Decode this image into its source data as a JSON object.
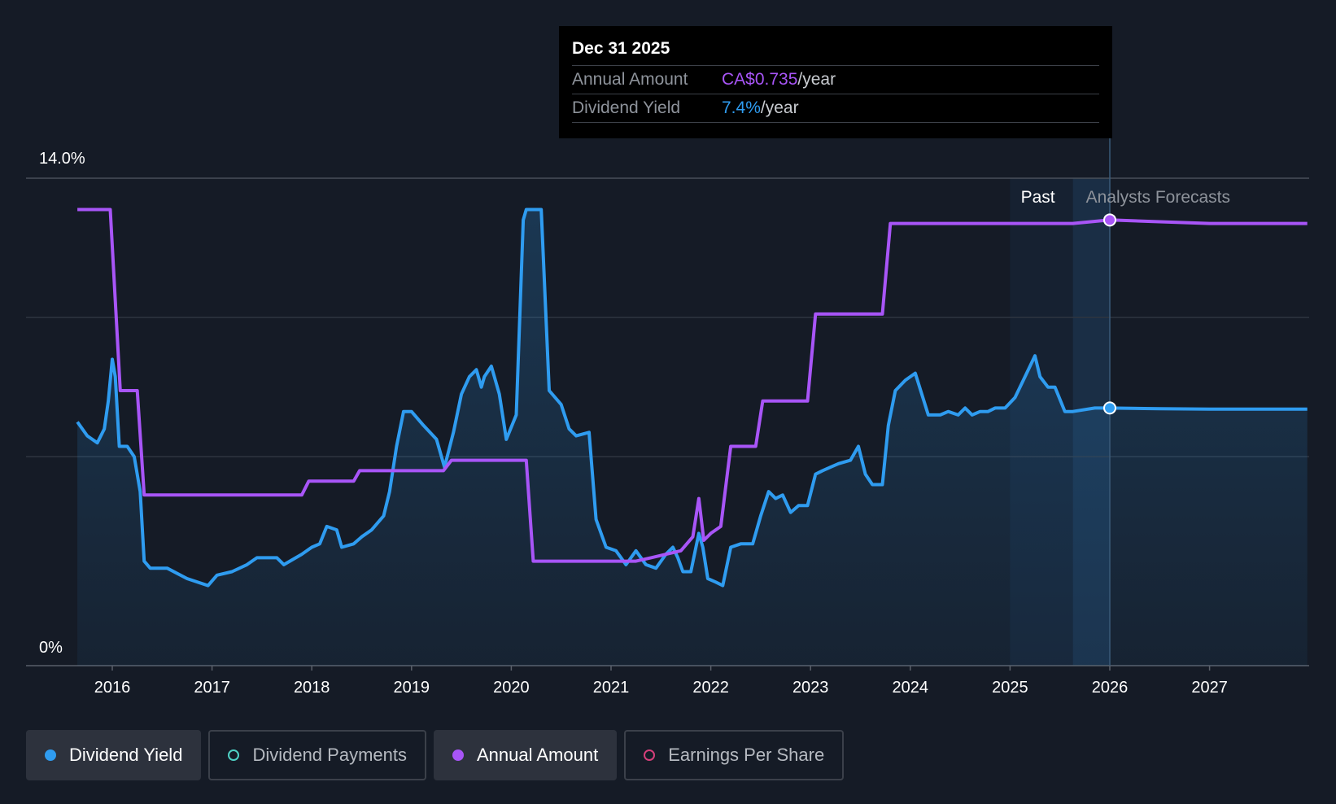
{
  "tooltip": {
    "date": "Dec 31 2025",
    "annual_label": "Annual Amount",
    "annual_value": "CA$0.735",
    "annual_unit": "/year",
    "yield_label": "Dividend Yield",
    "yield_value": "7.4%",
    "yield_unit": "/year"
  },
  "legend": {
    "dividend_yield": "Dividend Yield",
    "dividend_payments": "Dividend Payments",
    "annual_amount": "Annual Amount",
    "earnings_per_share": "Earnings Per Share"
  },
  "colors": {
    "background": "#151b26",
    "yield": "#2f9cf0",
    "annual": "#a855f7",
    "payments": "#4fd1c5",
    "eps": "#d63f7a",
    "grid": "#3a404b"
  },
  "chart_data": {
    "type": "line",
    "y_top_label": "14.0%",
    "y_bottom_label": "0%",
    "ylim": [
      0,
      14
    ],
    "xlim": [
      2015.7,
      2027.98
    ],
    "x_ticks": [
      "2016",
      "2017",
      "2018",
      "2019",
      "2020",
      "2021",
      "2022",
      "2023",
      "2024",
      "2025",
      "2026",
      "2027"
    ],
    "past_label": "Past",
    "forecast_label": "Analysts Forecasts",
    "past_start": 2025.0,
    "forecast_start": 2025.63,
    "marker_x": 2026.0,
    "series": [
      {
        "name": "Dividend Yield",
        "unit": "%",
        "points": [
          [
            2015.65,
            7.0
          ],
          [
            2015.75,
            6.6
          ],
          [
            2015.85,
            6.4
          ],
          [
            2015.92,
            6.8
          ],
          [
            2015.96,
            7.6
          ],
          [
            2016.0,
            8.8
          ],
          [
            2016.03,
            8.3
          ],
          [
            2016.07,
            6.3
          ],
          [
            2016.15,
            6.3
          ],
          [
            2016.22,
            6.0
          ],
          [
            2016.28,
            5.0
          ],
          [
            2016.32,
            3.0
          ],
          [
            2016.38,
            2.8
          ],
          [
            2016.55,
            2.8
          ],
          [
            2016.75,
            2.5
          ],
          [
            2016.96,
            2.3
          ],
          [
            2017.05,
            2.6
          ],
          [
            2017.2,
            2.7
          ],
          [
            2017.35,
            2.9
          ],
          [
            2017.45,
            3.1
          ],
          [
            2017.55,
            3.1
          ],
          [
            2017.65,
            3.1
          ],
          [
            2017.72,
            2.9
          ],
          [
            2017.9,
            3.2
          ],
          [
            2018.0,
            3.4
          ],
          [
            2018.08,
            3.5
          ],
          [
            2018.15,
            4.0
          ],
          [
            2018.25,
            3.9
          ],
          [
            2018.3,
            3.4
          ],
          [
            2018.42,
            3.5
          ],
          [
            2018.5,
            3.7
          ],
          [
            2018.6,
            3.9
          ],
          [
            2018.72,
            4.3
          ],
          [
            2018.78,
            5.0
          ],
          [
            2018.85,
            6.3
          ],
          [
            2018.92,
            7.3
          ],
          [
            2019.0,
            7.3
          ],
          [
            2019.12,
            6.9
          ],
          [
            2019.25,
            6.5
          ],
          [
            2019.33,
            5.7
          ],
          [
            2019.42,
            6.7
          ],
          [
            2019.5,
            7.8
          ],
          [
            2019.58,
            8.3
          ],
          [
            2019.65,
            8.5
          ],
          [
            2019.7,
            8.0
          ],
          [
            2019.73,
            8.3
          ],
          [
            2019.8,
            8.6
          ],
          [
            2019.88,
            7.8
          ],
          [
            2019.95,
            6.5
          ],
          [
            2020.05,
            7.2
          ],
          [
            2020.12,
            12.8
          ],
          [
            2020.15,
            13.1
          ],
          [
            2020.3,
            13.1
          ],
          [
            2020.38,
            7.9
          ],
          [
            2020.5,
            7.5
          ],
          [
            2020.58,
            6.8
          ],
          [
            2020.65,
            6.6
          ],
          [
            2020.78,
            6.7
          ],
          [
            2020.85,
            4.2
          ],
          [
            2020.95,
            3.4
          ],
          [
            2021.05,
            3.3
          ],
          [
            2021.15,
            2.9
          ],
          [
            2021.25,
            3.3
          ],
          [
            2021.35,
            2.9
          ],
          [
            2021.45,
            2.8
          ],
          [
            2021.55,
            3.2
          ],
          [
            2021.62,
            3.4
          ],
          [
            2021.67,
            3.1
          ],
          [
            2021.72,
            2.7
          ],
          [
            2021.8,
            2.7
          ],
          [
            2021.88,
            3.8
          ],
          [
            2021.92,
            3.4
          ],
          [
            2021.97,
            2.5
          ],
          [
            2022.05,
            2.4
          ],
          [
            2022.12,
            2.3
          ],
          [
            2022.2,
            3.4
          ],
          [
            2022.3,
            3.5
          ],
          [
            2022.42,
            3.5
          ],
          [
            2022.5,
            4.3
          ],
          [
            2022.58,
            5.0
          ],
          [
            2022.65,
            4.8
          ],
          [
            2022.72,
            4.9
          ],
          [
            2022.8,
            4.4
          ],
          [
            2022.88,
            4.6
          ],
          [
            2022.97,
            4.6
          ],
          [
            2023.05,
            5.5
          ],
          [
            2023.12,
            5.6
          ],
          [
            2023.2,
            5.7
          ],
          [
            2023.28,
            5.8
          ],
          [
            2023.4,
            5.9
          ],
          [
            2023.48,
            6.3
          ],
          [
            2023.55,
            5.5
          ],
          [
            2023.62,
            5.2
          ],
          [
            2023.72,
            5.2
          ],
          [
            2023.78,
            6.9
          ],
          [
            2023.85,
            7.9
          ],
          [
            2023.95,
            8.2
          ],
          [
            2024.05,
            8.4
          ],
          [
            2024.18,
            7.2
          ],
          [
            2024.3,
            7.2
          ],
          [
            2024.38,
            7.3
          ],
          [
            2024.48,
            7.2
          ],
          [
            2024.55,
            7.4
          ],
          [
            2024.62,
            7.2
          ],
          [
            2024.7,
            7.3
          ],
          [
            2024.78,
            7.3
          ],
          [
            2024.85,
            7.4
          ],
          [
            2024.95,
            7.4
          ],
          [
            2025.05,
            7.7
          ],
          [
            2025.15,
            8.3
          ],
          [
            2025.25,
            8.9
          ],
          [
            2025.3,
            8.3
          ],
          [
            2025.38,
            8.0
          ],
          [
            2025.45,
            8.0
          ],
          [
            2025.55,
            7.3
          ],
          [
            2025.63,
            7.3
          ],
          [
            2025.85,
            7.4
          ],
          [
            2026.0,
            7.4
          ],
          [
            2026.5,
            7.38
          ],
          [
            2027.0,
            7.37
          ],
          [
            2027.98,
            7.37
          ]
        ]
      },
      {
        "name": "Annual Amount",
        "unit": "scaled",
        "points": [
          [
            2015.65,
            13.1
          ],
          [
            2015.98,
            13.1
          ],
          [
            2016.08,
            7.9
          ],
          [
            2016.25,
            7.9
          ],
          [
            2016.32,
            4.9
          ],
          [
            2017.0,
            4.9
          ],
          [
            2017.9,
            4.9
          ],
          [
            2017.97,
            5.3
          ],
          [
            2018.42,
            5.3
          ],
          [
            2018.48,
            5.6
          ],
          [
            2019.0,
            5.6
          ],
          [
            2019.32,
            5.6
          ],
          [
            2019.4,
            5.9
          ],
          [
            2020.15,
            5.9
          ],
          [
            2020.22,
            3.0
          ],
          [
            2021.0,
            3.0
          ],
          [
            2021.25,
            3.0
          ],
          [
            2021.4,
            3.1
          ],
          [
            2021.7,
            3.3
          ],
          [
            2021.82,
            3.7
          ],
          [
            2021.88,
            4.8
          ],
          [
            2021.93,
            3.6
          ],
          [
            2022.0,
            3.8
          ],
          [
            2022.1,
            4.0
          ],
          [
            2022.2,
            6.3
          ],
          [
            2022.45,
            6.3
          ],
          [
            2022.52,
            7.6
          ],
          [
            2022.97,
            7.6
          ],
          [
            2023.05,
            10.1
          ],
          [
            2023.72,
            10.1
          ],
          [
            2023.8,
            12.7
          ],
          [
            2024.0,
            12.7
          ],
          [
            2025.63,
            12.7
          ],
          [
            2026.0,
            12.8
          ],
          [
            2026.5,
            12.75
          ],
          [
            2027.0,
            12.7
          ],
          [
            2027.98,
            12.7
          ]
        ]
      }
    ]
  }
}
